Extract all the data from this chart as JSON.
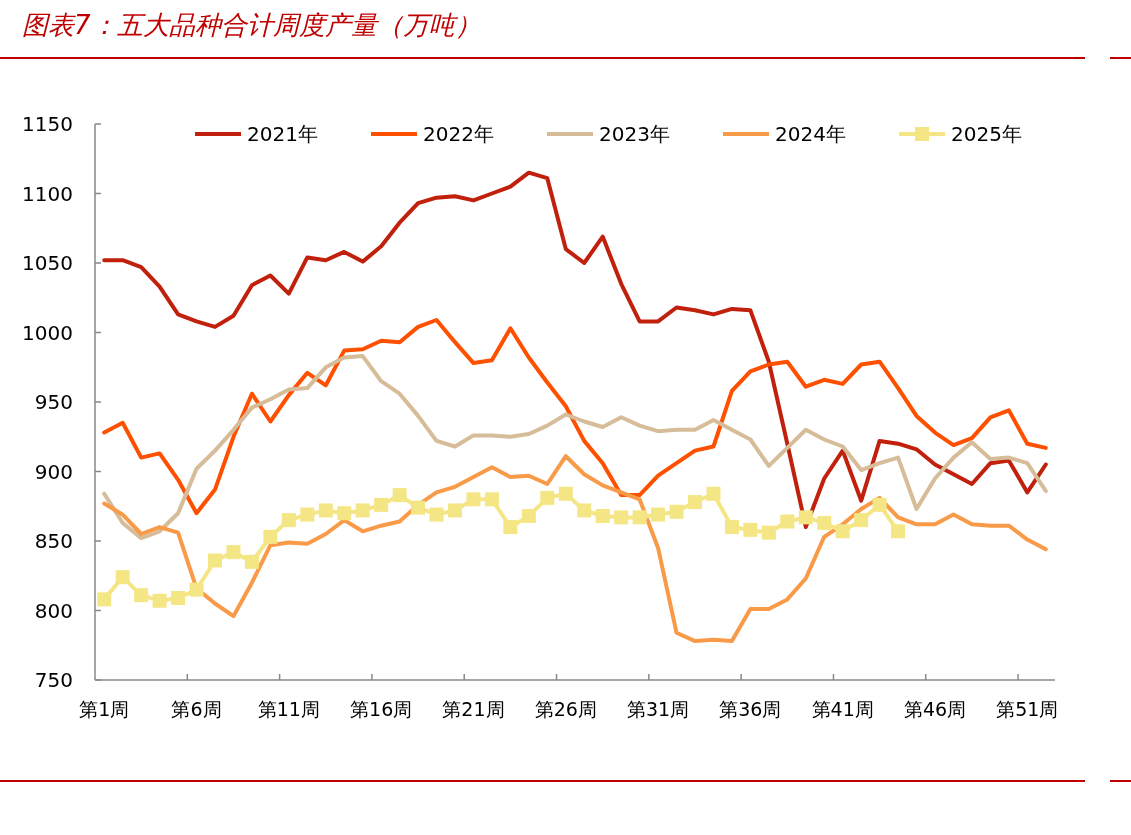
{
  "chart_data": {
    "type": "line",
    "title": "图表7：五大品种合计周度产量（万吨）",
    "categories": [
      "第1周",
      null,
      null,
      null,
      null,
      "第6周",
      null,
      null,
      null,
      null,
      "第11周",
      null,
      null,
      null,
      null,
      "第16周",
      null,
      null,
      null,
      null,
      "第21周",
      null,
      null,
      null,
      null,
      "第26周",
      null,
      null,
      null,
      null,
      "第31周",
      null,
      null,
      null,
      null,
      "第36周",
      null,
      null,
      null,
      null,
      "第41周",
      null,
      null,
      null,
      null,
      "第46周",
      null,
      null,
      null,
      null,
      "第51周",
      null
    ],
    "ylim": [
      750,
      1150
    ],
    "yticks": [
      750,
      800,
      850,
      900,
      950,
      1000,
      1050,
      1100,
      1150
    ],
    "grid": false,
    "legend": "top",
    "line_style": "solid",
    "series": [
      {
        "name": "2021年",
        "color": "#c0200c",
        "marker": "none",
        "values": [
          1052,
          1052,
          1047,
          1033,
          1013,
          1008,
          1004,
          1012,
          1034,
          1041,
          1028,
          1054,
          1052,
          1058,
          1051,
          1062,
          1079,
          1093,
          1097,
          1098,
          1095,
          1100,
          1105,
          1115,
          1111,
          1060,
          1050,
          1069,
          1035,
          1008,
          1008,
          1018,
          1016,
          1013,
          1017,
          1016,
          979,
          920,
          860,
          895,
          915,
          879,
          922,
          920,
          916,
          905,
          898,
          891,
          906,
          908,
          885,
          905
        ]
      },
      {
        "name": "2022年",
        "color": "#ff5000",
        "marker": "none",
        "values": [
          928,
          935,
          910,
          913,
          894,
          870,
          887,
          925,
          956,
          936,
          955,
          971,
          962,
          987,
          988,
          994,
          993,
          1004,
          1009,
          993,
          978,
          980,
          1003,
          982,
          964,
          947,
          922,
          906,
          883,
          883,
          897,
          906,
          915,
          918,
          958,
          972,
          977,
          979,
          961,
          966,
          963,
          977,
          979,
          960,
          940,
          928,
          919,
          924,
          939,
          944,
          920,
          917
        ]
      },
      {
        "name": "2023年",
        "color": "#d6bc98",
        "marker": "none",
        "values": [
          884,
          863,
          852,
          857,
          870,
          902,
          915,
          930,
          946,
          952,
          959,
          960,
          975,
          982,
          983,
          965,
          956,
          940,
          922,
          918,
          926,
          926,
          925,
          927,
          933,
          941,
          936,
          932,
          939,
          933,
          929,
          930,
          930,
          937,
          930,
          923,
          904,
          917,
          930,
          923,
          918,
          901,
          906,
          910,
          873,
          895,
          910,
          921,
          909,
          910,
          906,
          886
        ]
      },
      {
        "name": "2024年",
        "color": "#f99a48",
        "marker": "none",
        "values": [
          877,
          869,
          855,
          860,
          856,
          816,
          805,
          796,
          820,
          847,
          849,
          848,
          855,
          865,
          857,
          861,
          864,
          876,
          885,
          889,
          896,
          903,
          896,
          897,
          891,
          911,
          898,
          890,
          885,
          880,
          845,
          784,
          778,
          779,
          778,
          801,
          801,
          808,
          823,
          853,
          862,
          873,
          881,
          867,
          862,
          862,
          869,
          862,
          861,
          861,
          851,
          844
        ]
      },
      {
        "name": "2025年",
        "color": "#f5e685",
        "marker": "square",
        "values": [
          808,
          824,
          811,
          807,
          809,
          815,
          836,
          842,
          835,
          853,
          865,
          869,
          872,
          870,
          872,
          876,
          883,
          874,
          869,
          872,
          880,
          880,
          860,
          868,
          881,
          884,
          872,
          868,
          867,
          867,
          869,
          871,
          878,
          884,
          860,
          858,
          856,
          864,
          867,
          863,
          857,
          865,
          876,
          857,
          null,
          null,
          null,
          null,
          null,
          null,
          null,
          null
        ]
      }
    ]
  }
}
